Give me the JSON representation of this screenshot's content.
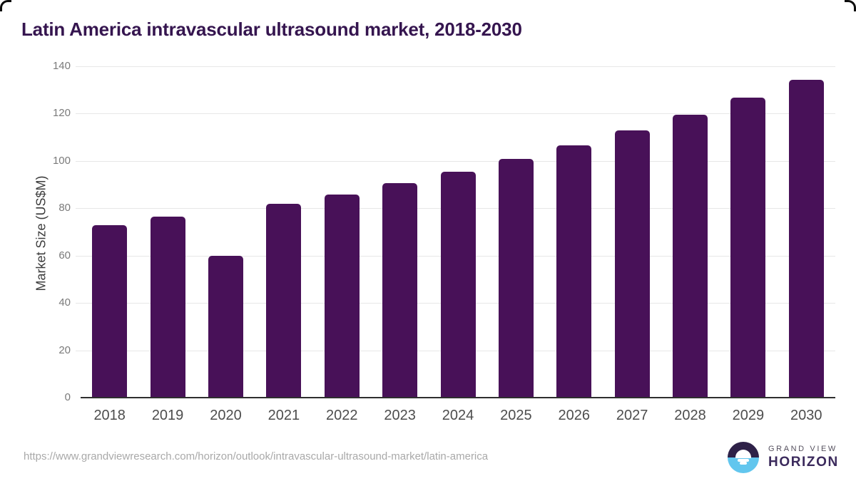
{
  "page": {
    "title": "Latin America intravascular ultrasound market, 2018-2030",
    "source_url": "https://www.grandviewresearch.com/horizon/outlook/intravascular-ultrasound-market/latin-america"
  },
  "logo": {
    "icon": "horizon-sun-icon",
    "brand_top": "GRAND VIEW",
    "brand_bottom": "HORIZON",
    "icon_top_color": "#2e2148",
    "icon_bottom_color": "#62c6ee",
    "wordmark_color": "#3b2a5c"
  },
  "chart_data": {
    "type": "bar",
    "title": "Latin America intravascular ultrasound market, 2018-2030",
    "title_color": "#35154f",
    "xlabel": "",
    "ylabel": "Market Size (US$M)",
    "categories": [
      "2018",
      "2019",
      "2020",
      "2021",
      "2022",
      "2023",
      "2024",
      "2025",
      "2026",
      "2027",
      "2028",
      "2029",
      "2030"
    ],
    "values": [
      73.0,
      76.4,
      60.0,
      81.9,
      85.8,
      90.5,
      95.4,
      100.8,
      106.5,
      112.8,
      119.4,
      126.8,
      134.4
    ],
    "ylim": [
      0,
      140
    ],
    "yticks": [
      0,
      20,
      40,
      60,
      80,
      100,
      120,
      140
    ],
    "grid": "horizontal-only",
    "legend": "none",
    "bar_color": "#481158",
    "gridline_color": "#e7e7e7",
    "axis_line_color": "#2f2f2f"
  }
}
